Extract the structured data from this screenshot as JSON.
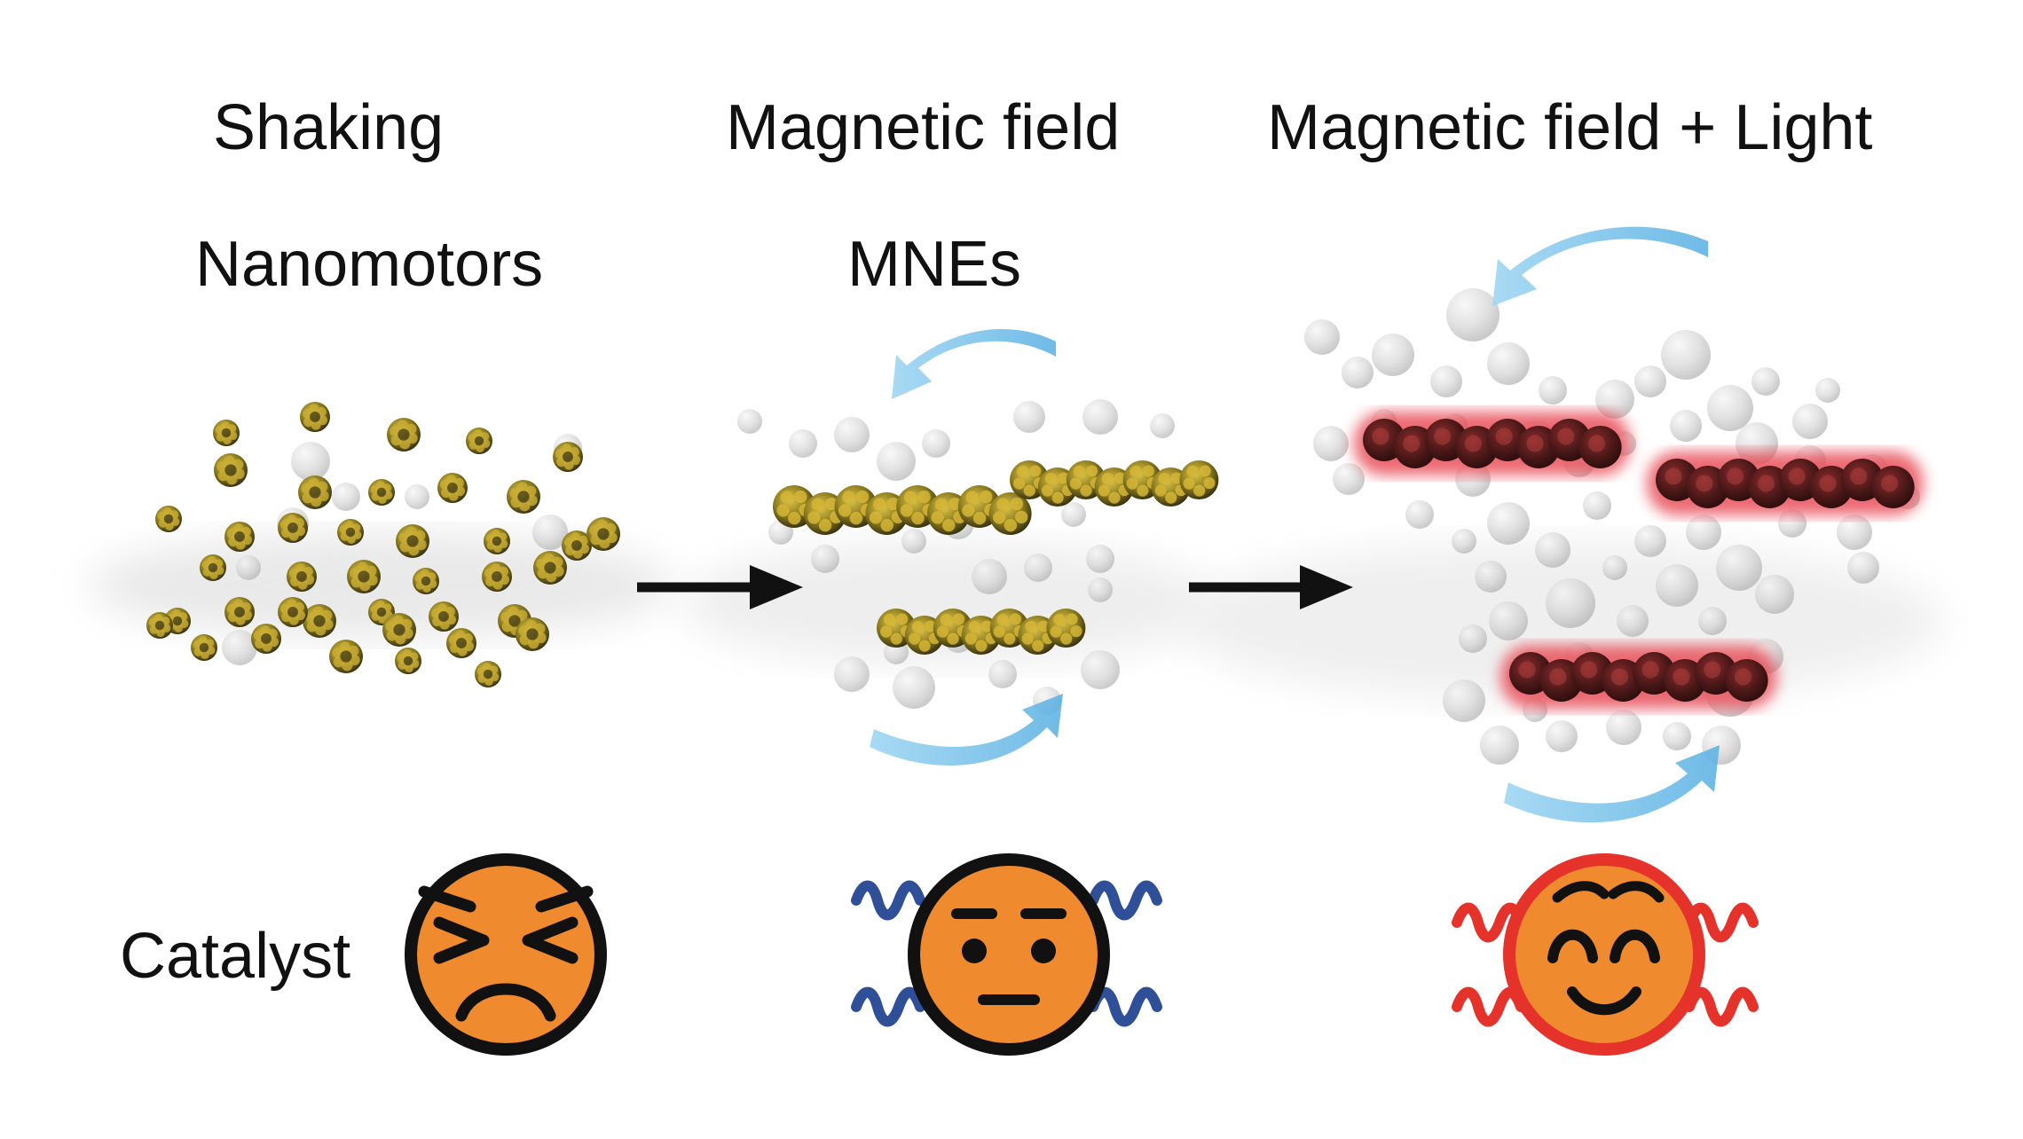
{
  "columns": [
    {
      "title": "Shaking",
      "subtitle": "Nanomotors"
    },
    {
      "title": "Magnetic field",
      "subtitle": "MNEs"
    },
    {
      "title": "Magnetic field + Light",
      "subtitle": ""
    }
  ],
  "row_label": "Catalyst",
  "faces": [
    {
      "expression": "persevering-face",
      "glow": "none"
    },
    {
      "expression": "neutral-face",
      "glow": "blue-wavy"
    },
    {
      "expression": "smiling-face",
      "glow": "red-wavy"
    }
  ],
  "colors": {
    "text": "#111111",
    "particle_gold": "#8a7a1e",
    "bubble_gray": "#c9c9c9",
    "rotation_arrow_blue": "#6cc0e8",
    "light_red": "#e8505a",
    "face_orange": "#ef8a2e",
    "wave_blue": "#2f4f98",
    "wave_red": "#e5322b"
  }
}
